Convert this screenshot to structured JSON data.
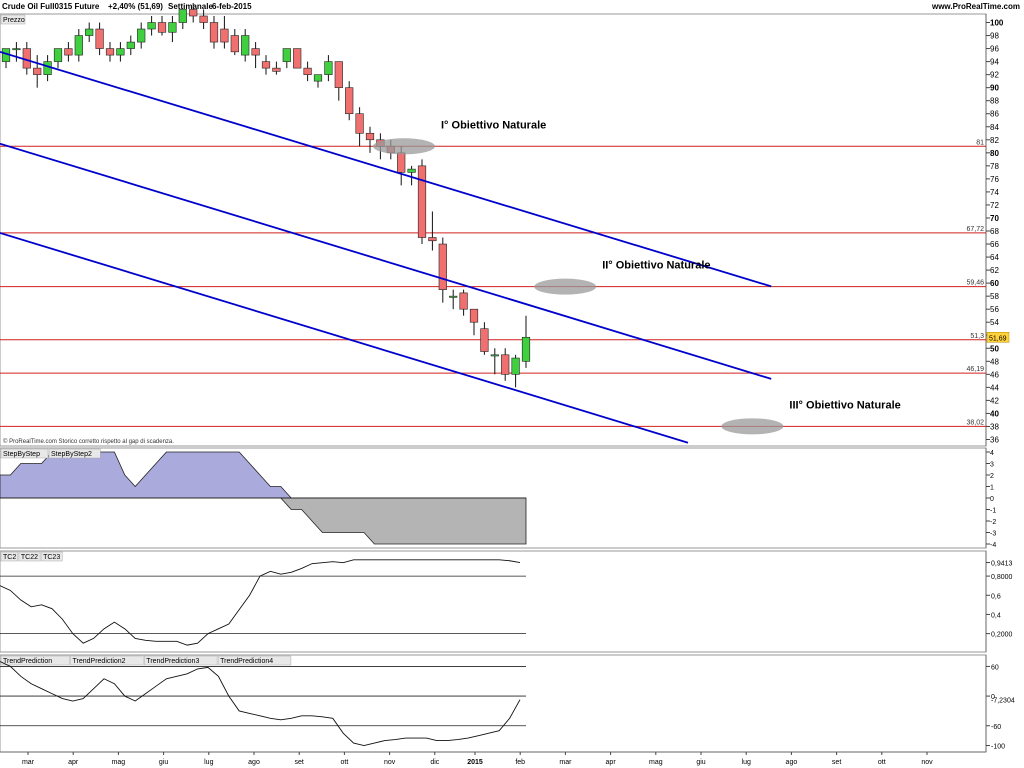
{
  "header": {
    "instrument": "Crude Oil Full0315 Future",
    "change": "+2,40% (51,69)",
    "period": "Settimanale",
    "date": "6-feb-2015",
    "site": "www.ProRealTime.com"
  },
  "price_panel": {
    "tag": "Prezzo",
    "copyright": "© ProRealTime.com Storico corretto rispetto al gap di scadenza.",
    "last_price_label": "51,69"
  },
  "indicator_tags": {
    "panel1": [
      "StepByStep",
      "StepByStep2"
    ],
    "panel2": [
      "TC2",
      "TC22",
      "TC23"
    ],
    "panel3": [
      "TrendPrediction",
      "TrendPrediction2",
      "TrendPrediction3",
      "TrendPrediction4"
    ]
  },
  "colors": {
    "up": "#3fcf3f",
    "down": "#f07070",
    "channel": "#0000cc",
    "level": "#d02020",
    "area_pos": "#aaaadd",
    "area_neg": "#b4b4b4"
  },
  "chart_data": [
    {
      "type": "candlestick",
      "title": "Crude Oil Full0315 Future",
      "ylim": [
        35,
        101
      ],
      "ytick_labels": [
        "36",
        "38",
        "40",
        "42",
        "44",
        "46",
        "48",
        "50",
        "52",
        "54",
        "56",
        "58",
        "60",
        "62",
        "64",
        "66",
        "68",
        "70",
        "72",
        "74",
        "76",
        "78",
        "80",
        "82",
        "84",
        "86",
        "88",
        "90",
        "92",
        "94",
        "96",
        "98",
        "100"
      ],
      "xtick_labels": [
        "mar",
        "apr",
        "mag",
        "giu",
        "lug",
        "ago",
        "set",
        "ott",
        "nov",
        "dic",
        "2015",
        "feb",
        "mar",
        "apr",
        "mag",
        "giu",
        "lug",
        "ago",
        "set",
        "ott",
        "nov"
      ],
      "candles": [
        {
          "o": 94,
          "h": 96,
          "l": 93,
          "c": 96
        },
        {
          "o": 96,
          "h": 97,
          "l": 94,
          "c": 96
        },
        {
          "o": 96,
          "h": 97,
          "l": 92,
          "c": 93
        },
        {
          "o": 93,
          "h": 95,
          "l": 90,
          "c": 92
        },
        {
          "o": 92,
          "h": 95,
          "l": 91,
          "c": 94
        },
        {
          "o": 94,
          "h": 96,
          "l": 93,
          "c": 96
        },
        {
          "o": 96,
          "h": 97,
          "l": 94,
          "c": 95
        },
        {
          "o": 95,
          "h": 99,
          "l": 94,
          "c": 98
        },
        {
          "o": 98,
          "h": 100,
          "l": 97,
          "c": 99
        },
        {
          "o": 99,
          "h": 100,
          "l": 95,
          "c": 96
        },
        {
          "o": 96,
          "h": 97,
          "l": 94,
          "c": 95
        },
        {
          "o": 95,
          "h": 97,
          "l": 94,
          "c": 96
        },
        {
          "o": 96,
          "h": 98,
          "l": 95,
          "c": 97
        },
        {
          "o": 97,
          "h": 100,
          "l": 96,
          "c": 99
        },
        {
          "o": 99,
          "h": 101,
          "l": 98,
          "c": 100
        },
        {
          "o": 100,
          "h": 101,
          "l": 98,
          "c": 98.5
        },
        {
          "o": 98.5,
          "h": 101,
          "l": 97,
          "c": 100
        },
        {
          "o": 100,
          "h": 102,
          "l": 99,
          "c": 102
        },
        {
          "o": 102,
          "h": 103,
          "l": 100,
          "c": 101
        },
        {
          "o": 101,
          "h": 102,
          "l": 99,
          "c": 100
        },
        {
          "o": 100,
          "h": 101,
          "l": 96,
          "c": 97
        },
        {
          "o": 99,
          "h": 101,
          "l": 96,
          "c": 97
        },
        {
          "o": 98,
          "h": 99,
          "l": 95,
          "c": 95.5
        },
        {
          "o": 95,
          "h": 99,
          "l": 94,
          "c": 98
        },
        {
          "o": 96,
          "h": 97,
          "l": 93,
          "c": 95
        },
        {
          "o": 94,
          "h": 95,
          "l": 92,
          "c": 93
        },
        {
          "o": 93,
          "h": 94,
          "l": 92,
          "c": 92.5
        },
        {
          "o": 94,
          "h": 96,
          "l": 93,
          "c": 96
        },
        {
          "o": 96,
          "h": 96,
          "l": 93,
          "c": 93
        },
        {
          "o": 93,
          "h": 94,
          "l": 91,
          "c": 92
        },
        {
          "o": 91,
          "h": 92,
          "l": 90,
          "c": 92
        },
        {
          "o": 92,
          "h": 95,
          "l": 91,
          "c": 94
        },
        {
          "o": 94,
          "h": 94,
          "l": 88,
          "c": 90
        },
        {
          "o": 90,
          "h": 91,
          "l": 85,
          "c": 86
        },
        {
          "o": 86,
          "h": 87,
          "l": 81,
          "c": 83
        },
        {
          "o": 83,
          "h": 84,
          "l": 80,
          "c": 82
        },
        {
          "o": 82,
          "h": 83,
          "l": 79,
          "c": 81
        },
        {
          "o": 81,
          "h": 82,
          "l": 79,
          "c": 80
        },
        {
          "o": 80,
          "h": 81,
          "l": 75,
          "c": 77
        },
        {
          "o": 77,
          "h": 78,
          "l": 75,
          "c": 77.5
        },
        {
          "o": 78,
          "h": 79,
          "l": 66,
          "c": 67
        },
        {
          "o": 67,
          "h": 71,
          "l": 65,
          "c": 66.5
        },
        {
          "o": 66,
          "h": 67,
          "l": 57,
          "c": 59
        },
        {
          "o": 58,
          "h": 59,
          "l": 56,
          "c": 58
        },
        {
          "o": 58.5,
          "h": 59,
          "l": 55,
          "c": 56
        },
        {
          "o": 56,
          "h": 56,
          "l": 52,
          "c": 54
        },
        {
          "o": 53,
          "h": 54,
          "l": 49,
          "c": 49.5
        },
        {
          "o": 49,
          "h": 50,
          "l": 46,
          "c": 49
        },
        {
          "o": 49,
          "h": 50,
          "l": 45,
          "c": 46
        },
        {
          "o": 46,
          "h": 49,
          "l": 44,
          "c": 48.5
        },
        {
          "o": 48,
          "h": 55,
          "l": 47,
          "c": 51.69
        }
      ],
      "levels": [
        {
          "label": "81",
          "value": 81
        },
        {
          "label": "67,72",
          "value": 67.72
        },
        {
          "label": "59,46",
          "value": 59.46
        },
        {
          "label": "51,3",
          "value": 51.3
        },
        {
          "label": "46,19",
          "value": 46.19
        },
        {
          "label": "38,02",
          "value": 38.02
        }
      ],
      "channel_lines": [
        {
          "x0": -1,
          "y0": 95.8,
          "x1": 1,
          "y1": 95.6,
          "x_start": 0,
          "x_end": 73,
          "y_start": 95.5,
          "y_end": 59.5
        },
        {
          "x_start": 0,
          "x_end": 73,
          "y_start": 81.4,
          "y_end": 45.3
        },
        {
          "x_start": 0,
          "x_end": 65,
          "y_start": 67.7,
          "y_end": 35.5
        }
      ],
      "targets": [
        {
          "label": "I° Obiettivo Naturale",
          "value": 81,
          "index": 32.5
        },
        {
          "label": "II° Obiettivo Naturale",
          "value": 59.46,
          "index": 48
        },
        {
          "label": "III° Obiettivo Naturale",
          "value": 38.02,
          "index": 66
        }
      ]
    },
    {
      "type": "area",
      "ylim": [
        -4,
        4
      ],
      "ytick_labels": [
        "4",
        "3",
        "2",
        "1",
        "0",
        "-1",
        "-2",
        "-3",
        "-4"
      ],
      "values": [
        2,
        2,
        3,
        3,
        3,
        4,
        4,
        4,
        4,
        4,
        4,
        4,
        2,
        1,
        2,
        3,
        4,
        4,
        4,
        4,
        4,
        4,
        4,
        4,
        3,
        2,
        1,
        1,
        -1,
        -1,
        -2,
        -3,
        -3,
        -3,
        -3,
        -3,
        -4,
        -4,
        -4,
        -4,
        -4,
        -4,
        -4,
        -4,
        -4,
        -4,
        -4,
        -4,
        -4,
        -4,
        -4
      ]
    },
    {
      "type": "line",
      "ytick_labels": [
        "0,9413",
        "0,8000",
        "0,6",
        "0,4",
        "0,2000"
      ],
      "lines_at": [
        "0,8000",
        "0,2000"
      ],
      "last_value": "0,9413",
      "values": [
        0.7,
        0.65,
        0.55,
        0.48,
        0.5,
        0.46,
        0.35,
        0.2,
        0.1,
        0.15,
        0.25,
        0.32,
        0.25,
        0.15,
        0.13,
        0.12,
        0.12,
        0.12,
        0.08,
        0.1,
        0.2,
        0.25,
        0.3,
        0.45,
        0.6,
        0.8,
        0.85,
        0.82,
        0.84,
        0.88,
        0.93,
        0.94,
        0.95,
        0.94,
        0.97,
        0.97,
        0.97,
        0.97,
        0.97,
        0.97,
        0.97,
        0.97,
        0.97,
        0.97,
        0.97,
        0.97,
        0.97,
        0.97,
        0.97,
        0.96,
        0.9413
      ]
    },
    {
      "type": "line",
      "ytick_labels": [
        "60",
        "0",
        "-60",
        "-100"
      ],
      "lines_at": [
        "60",
        "0",
        "-60"
      ],
      "last_value": "-7,2304",
      "values": [
        70,
        60,
        40,
        25,
        15,
        5,
        -5,
        -10,
        -5,
        15,
        35,
        25,
        0,
        -10,
        5,
        20,
        35,
        40,
        45,
        55,
        58,
        40,
        0,
        -30,
        -35,
        -40,
        -45,
        -48,
        -45,
        -40,
        -40,
        -42,
        -45,
        -75,
        -95,
        -100,
        -95,
        -90,
        -88,
        -85,
        -85,
        -85,
        -90,
        -90,
        -88,
        -85,
        -80,
        -75,
        -70,
        -45,
        -7.23
      ]
    }
  ]
}
